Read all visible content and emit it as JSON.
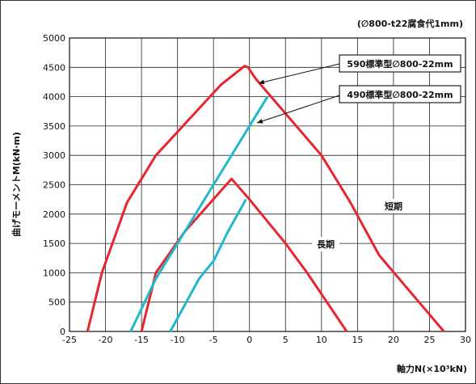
{
  "chart_data": {
    "type": "line",
    "title": "(∅800-t22腐食代1mm)",
    "xlabel": "軸力N(×10³kN)",
    "ylabel": "曲げモーメントM(kN·m)",
    "xlim": [
      -25,
      30
    ],
    "ylim": [
      0,
      5000
    ],
    "x_ticks": [
      "-25",
      "-20",
      "-15",
      "-10",
      "-5",
      "0",
      "5",
      "10",
      "15",
      "20",
      "25",
      "30"
    ],
    "y_ticks": [
      "0",
      "500",
      "1000",
      "1500",
      "2000",
      "2500",
      "3000",
      "3500",
      "4000",
      "4500",
      "5000"
    ],
    "grid": true,
    "series": [
      {
        "name": "590標準型∅800-22mm",
        "color": "#e8262f",
        "segments": [
          {
            "label": "短期",
            "points": [
              [
                -22.5,
                0
              ],
              [
                -20.5,
                1000
              ],
              [
                -17,
                2200
              ],
              [
                -13,
                3000
              ],
              [
                -4,
                4200
              ],
              [
                -0.7,
                4520
              ],
              [
                -0.2,
                4500
              ],
              [
                0.9,
                4300
              ],
              [
                10,
                3000
              ],
              [
                14,
                2200
              ],
              [
                18,
                1300
              ],
              [
                27,
                0
              ]
            ]
          },
          {
            "label": "長期",
            "points": [
              [
                -15,
                0
              ],
              [
                -13,
                1000
              ],
              [
                -9,
                1700
              ],
              [
                -2.5,
                2600
              ],
              [
                0,
                2250
              ],
              [
                5,
                1500
              ],
              [
                8,
                1000
              ],
              [
                13.5,
                0
              ]
            ]
          }
        ]
      },
      {
        "name": "490標準型∅800-22mm",
        "color": "#1fb8cc",
        "segments": [
          {
            "label": "短期",
            "points": [
              [
                -16.5,
                0
              ],
              [
                -13,
                900
              ],
              [
                -8,
                1900
              ],
              [
                -4,
                2700
              ],
              [
                2.5,
                4000
              ]
            ]
          },
          {
            "label": "長期",
            "points": [
              [
                -11,
                0
              ],
              [
                -7,
                900
              ],
              [
                -5,
                1200
              ],
              [
                -3,
                1700
              ],
              [
                -0.5,
                2250
              ]
            ]
          }
        ]
      }
    ],
    "annotations": [
      "590標準型∅800-22mm",
      "490標準型∅800-22mm",
      "短期",
      "長期"
    ]
  }
}
